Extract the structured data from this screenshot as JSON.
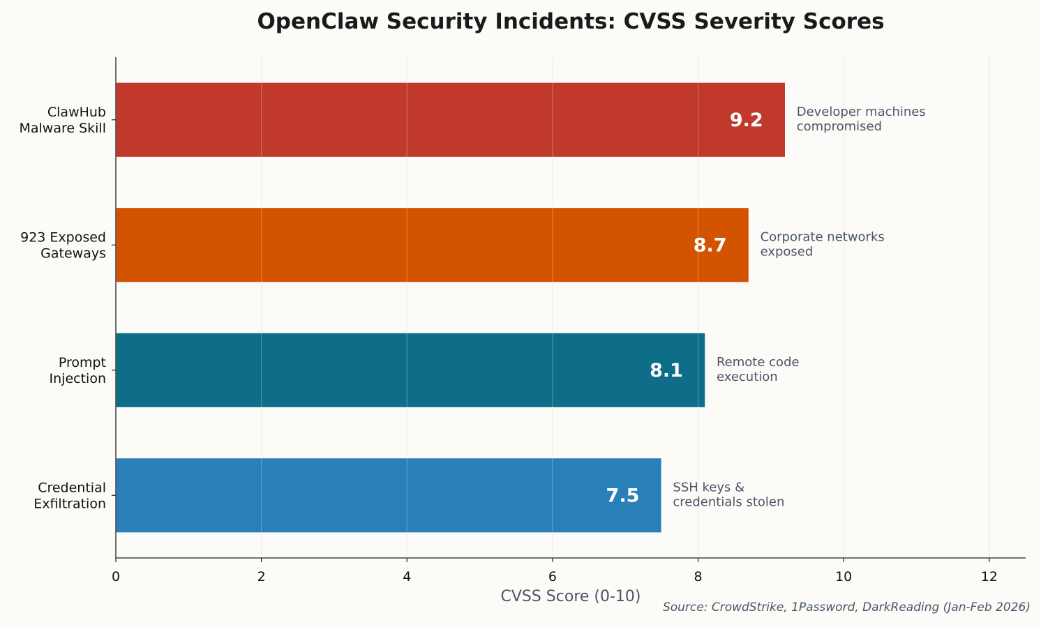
{
  "chart_data": {
    "type": "bar",
    "orientation": "horizontal",
    "title": "OpenClaw Security Incidents: CVSS Severity Scores",
    "xlabel": "CVSS Score (0-10)",
    "ylabel": "",
    "xlim": [
      0,
      12.5
    ],
    "xticks": [
      "0",
      "2",
      "4",
      "6",
      "8",
      "10",
      "12"
    ],
    "grid": "vertical",
    "categories": [
      [
        "ClawHub",
        "Malware Skill"
      ],
      [
        "923 Exposed",
        "Gateways"
      ],
      [
        "Prompt",
        "Injection"
      ],
      [
        "Credential",
        "Exfiltration"
      ]
    ],
    "values": [
      9.2,
      8.7,
      8.1,
      7.5
    ],
    "value_labels": [
      "9.2",
      "8.7",
      "8.1",
      "7.5"
    ],
    "annotations": [
      [
        "Developer machines",
        "compromised"
      ],
      [
        "Corporate networks",
        "exposed"
      ],
      [
        "Remote code",
        "execution"
      ],
      [
        "SSH keys &",
        "credentials stolen"
      ]
    ],
    "colors": [
      "#c0392b",
      "#d35400",
      "#0e6e8a",
      "#2980b9"
    ],
    "source": "Source: CrowdStrike, 1Password, DarkReading (Jan-Feb 2026)"
  }
}
